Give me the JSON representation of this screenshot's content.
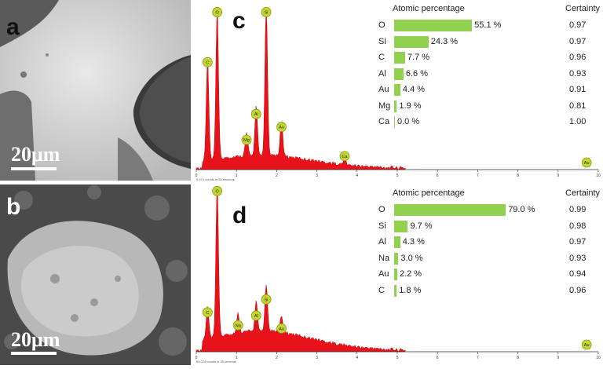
{
  "panels": {
    "a": {
      "letter": "a",
      "scalebar": "20μm"
    },
    "b": {
      "letter": "b",
      "scalebar": "20μm"
    },
    "c": {
      "letter": "c"
    },
    "d": {
      "letter": "d"
    }
  },
  "table_c": {
    "header_left": "Atomic percentage",
    "header_right": "Certainty",
    "rows": [
      {
        "el": "O",
        "pct": 55.1,
        "label": "55.1 %",
        "cert": "0.97"
      },
      {
        "el": "Si",
        "pct": 24.3,
        "label": "24.3 %",
        "cert": "0.97"
      },
      {
        "el": "C",
        "pct": 7.7,
        "label": "7.7 %",
        "cert": "0.96"
      },
      {
        "el": "Al",
        "pct": 6.6,
        "label": "6.6 %",
        "cert": "0.93"
      },
      {
        "el": "Au",
        "pct": 4.4,
        "label": "4.4 %",
        "cert": "0.91"
      },
      {
        "el": "Mg",
        "pct": 1.9,
        "label": "1.9 %",
        "cert": "0.81"
      },
      {
        "el": "Ca",
        "pct": 0.0,
        "label": "0.0 %",
        "cert": "1.00"
      }
    ]
  },
  "table_d": {
    "header_left": "Atomic percentage",
    "header_right": "Certainty",
    "rows": [
      {
        "el": "O",
        "pct": 79.0,
        "label": "79.0 %",
        "cert": "0.99"
      },
      {
        "el": "Si",
        "pct": 9.7,
        "label": "9.7 %",
        "cert": "0.98"
      },
      {
        "el": "Al",
        "pct": 4.3,
        "label": "4.3 %",
        "cert": "0.97"
      },
      {
        "el": "Na",
        "pct": 3.0,
        "label": "3.0 %",
        "cert": "0.93"
      },
      {
        "el": "Au",
        "pct": 2.2,
        "label": "2.2 %",
        "cert": "0.94"
      },
      {
        "el": "C",
        "pct": 1.8,
        "label": "1.8 %",
        "cert": "0.96"
      }
    ]
  },
  "chart_data": [
    {
      "type": "area",
      "panel": "c",
      "xlim": [
        0,
        10
      ],
      "xticks": [
        "0",
        "1",
        "2",
        "3",
        "4",
        "5",
        "6",
        "7",
        "8",
        "9",
        "10"
      ],
      "counts_note": "9.574 counts in 30 seconds",
      "peaks": [
        {
          "label": "C",
          "energy": 0.28,
          "height": 0.62
        },
        {
          "label": "O",
          "energy": 0.52,
          "height": 0.93
        },
        {
          "label": "Mg",
          "energy": 1.25,
          "height": 0.14
        },
        {
          "label": "Al",
          "energy": 1.49,
          "height": 0.3
        },
        {
          "label": "Si",
          "energy": 1.74,
          "height": 0.93
        },
        {
          "label": "Au",
          "energy": 2.12,
          "height": 0.22
        },
        {
          "label": "Ca",
          "energy": 3.69,
          "height": 0.04
        },
        {
          "label": "Au",
          "energy": 9.71,
          "height": 0.0
        }
      ]
    },
    {
      "type": "area",
      "panel": "d",
      "xlim": [
        0,
        10
      ],
      "xticks": [
        "0",
        "1",
        "2",
        "3",
        "4",
        "5",
        "6",
        "7",
        "8",
        "9",
        "10"
      ],
      "counts_note": "65.024 counts in 30 seconds",
      "peaks": [
        {
          "label": "C",
          "energy": 0.28,
          "height": 0.2
        },
        {
          "label": "O",
          "energy": 0.52,
          "height": 0.95
        },
        {
          "label": "Na",
          "energy": 1.04,
          "height": 0.12
        },
        {
          "label": "Al",
          "energy": 1.49,
          "height": 0.18
        },
        {
          "label": "Si",
          "energy": 1.74,
          "height": 0.28
        },
        {
          "label": "Au",
          "energy": 2.12,
          "height": 0.1
        },
        {
          "label": "Au",
          "energy": 9.71,
          "height": 0.0
        }
      ]
    }
  ]
}
